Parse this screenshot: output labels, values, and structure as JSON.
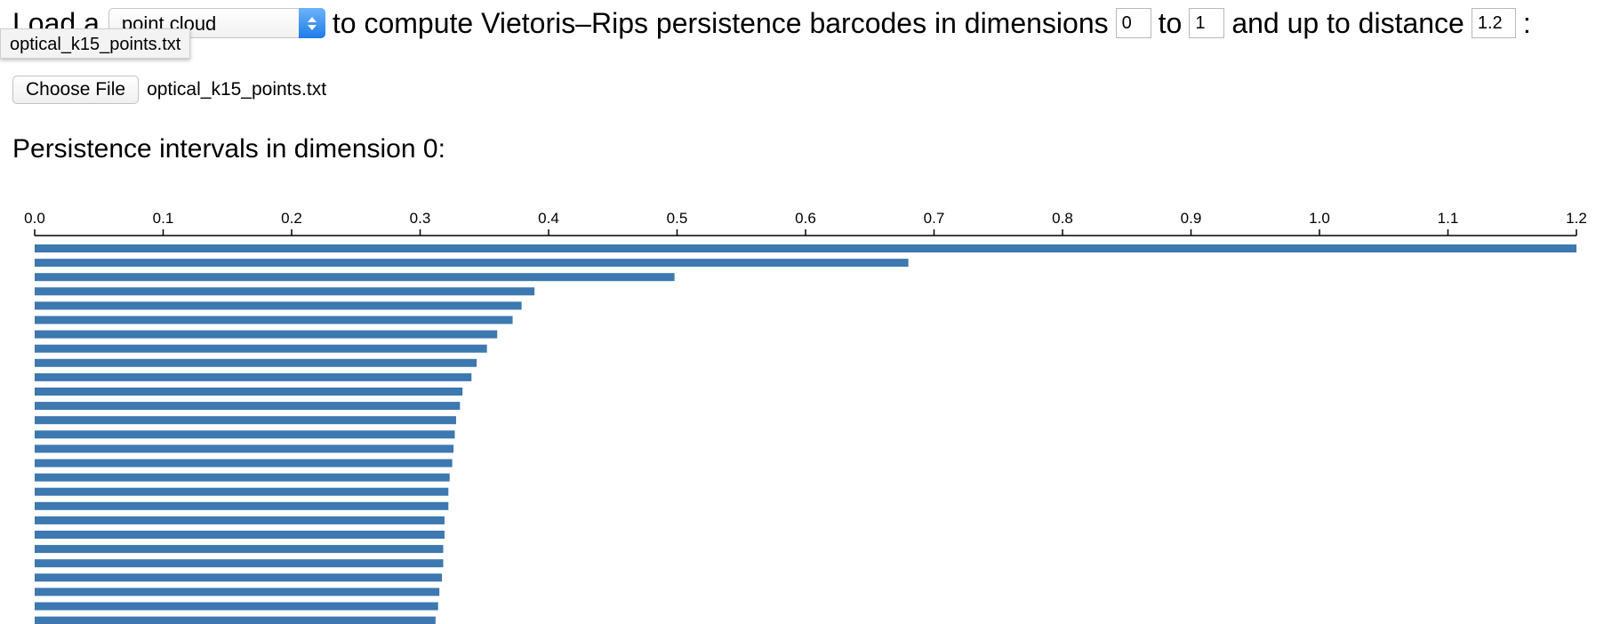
{
  "controls": {
    "load_prefix": "Load a",
    "input_type_value": "point cloud",
    "compute_text": "to compute Vietoris–Rips persistence barcodes in dimensions",
    "dim_min_value": "0",
    "to_text": "to",
    "dim_max_value": "1",
    "distance_text": "and up to distance",
    "distance_value": "1.2",
    "colon": ":"
  },
  "tooltip": {
    "text": "optical_k15_points.txt"
  },
  "file_input": {
    "button_label": "Choose File",
    "file_name": "optical_k15_points.txt"
  },
  "heading": "Persistence intervals in dimension 0:",
  "colors": {
    "bar": "#3d78b0",
    "select_accent": "#2a86ee"
  },
  "chart_data": {
    "type": "bar",
    "orientation": "horizontal",
    "x_axis_position": "top",
    "xlim": [
      0.0,
      1.2
    ],
    "ticks": [
      "0.0",
      "0.1",
      "0.2",
      "0.3",
      "0.4",
      "0.5",
      "0.6",
      "0.7",
      "0.8",
      "0.9",
      "1.0",
      "1.1",
      "1.2"
    ],
    "intervals": [
      [
        0,
        1.2
      ],
      [
        0,
        0.68
      ],
      [
        0,
        0.498
      ],
      [
        0,
        0.389
      ],
      [
        0,
        0.379
      ],
      [
        0,
        0.372
      ],
      [
        0,
        0.36
      ],
      [
        0,
        0.352
      ],
      [
        0,
        0.344
      ],
      [
        0,
        0.34
      ],
      [
        0,
        0.333
      ],
      [
        0,
        0.331
      ],
      [
        0,
        0.328
      ],
      [
        0,
        0.327
      ],
      [
        0,
        0.326
      ],
      [
        0,
        0.325
      ],
      [
        0,
        0.323
      ],
      [
        0,
        0.322
      ],
      [
        0,
        0.322
      ],
      [
        0,
        0.319
      ],
      [
        0,
        0.319
      ],
      [
        0,
        0.318
      ],
      [
        0,
        0.318
      ],
      [
        0,
        0.317
      ],
      [
        0,
        0.315
      ],
      [
        0,
        0.314
      ],
      [
        0,
        0.312
      ]
    ]
  }
}
